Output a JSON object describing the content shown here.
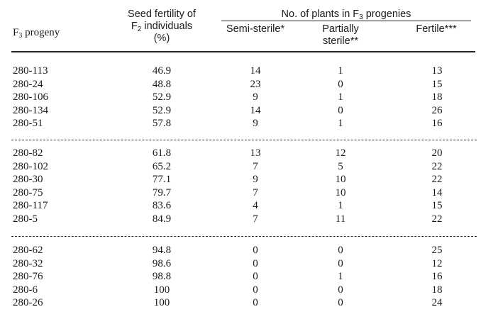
{
  "header": {
    "progeny_label": "F",
    "progeny_sub": "3",
    "progeny_rest": " progeny",
    "fert_line1": "Seed fertility of",
    "fert_line2_a": "F",
    "fert_line2_sub": "2",
    "fert_line2_b": " individuals",
    "fert_line3": "(%)",
    "plants_a": "No. of plants in F",
    "plants_sub": "3",
    "plants_b": " progenies",
    "semi": "Semi-sterile*",
    "partial_1": "Partially",
    "partial_2": "sterile**",
    "fertile": "Fertile***"
  },
  "groups": [
    [
      {
        "progeny": "280-113",
        "fertility": "46.9",
        "semi": "14",
        "partial": "1",
        "fertile": "13"
      },
      {
        "progeny": "280-24",
        "fertility": "48.8",
        "semi": "23",
        "partial": "0",
        "fertile": "15"
      },
      {
        "progeny": "280-106",
        "fertility": "52.9",
        "semi": "9",
        "partial": "1",
        "fertile": "18"
      },
      {
        "progeny": "280-134",
        "fertility": "52.9",
        "semi": "14",
        "partial": "0",
        "fertile": "26"
      },
      {
        "progeny": "280-51",
        "fertility": "57.8",
        "semi": "9",
        "partial": "1",
        "fertile": "16"
      }
    ],
    [
      {
        "progeny": "280-82",
        "fertility": "61.8",
        "semi": "13",
        "partial": "12",
        "fertile": "20"
      },
      {
        "progeny": "280-102",
        "fertility": "65.2",
        "semi": "7",
        "partial": "5",
        "fertile": "22"
      },
      {
        "progeny": "280-30",
        "fertility": "77.1",
        "semi": "9",
        "partial": "10",
        "fertile": "22"
      },
      {
        "progeny": "280-75",
        "fertility": "79.7",
        "semi": "7",
        "partial": "10",
        "fertile": "14"
      },
      {
        "progeny": "280-117",
        "fertility": "83.6",
        "semi": "4",
        "partial": "1",
        "fertile": "15"
      },
      {
        "progeny": "280-5",
        "fertility": "84.9",
        "semi": "7",
        "partial": "11",
        "fertile": "22"
      }
    ],
    [
      {
        "progeny": "280-62",
        "fertility": "94.8",
        "semi": "0",
        "partial": "0",
        "fertile": "25"
      },
      {
        "progeny": "280-32",
        "fertility": "98.6",
        "semi": "0",
        "partial": "0",
        "fertile": "12"
      },
      {
        "progeny": "280-76",
        "fertility": "98.8",
        "semi": "0",
        "partial": "1",
        "fertile": "16"
      },
      {
        "progeny": "280-6",
        "fertility": "100",
        "semi": "0",
        "partial": "0",
        "fertile": "18"
      },
      {
        "progeny": "280-26",
        "fertility": "100",
        "semi": "0",
        "partial": "0",
        "fertile": "24"
      }
    ]
  ]
}
